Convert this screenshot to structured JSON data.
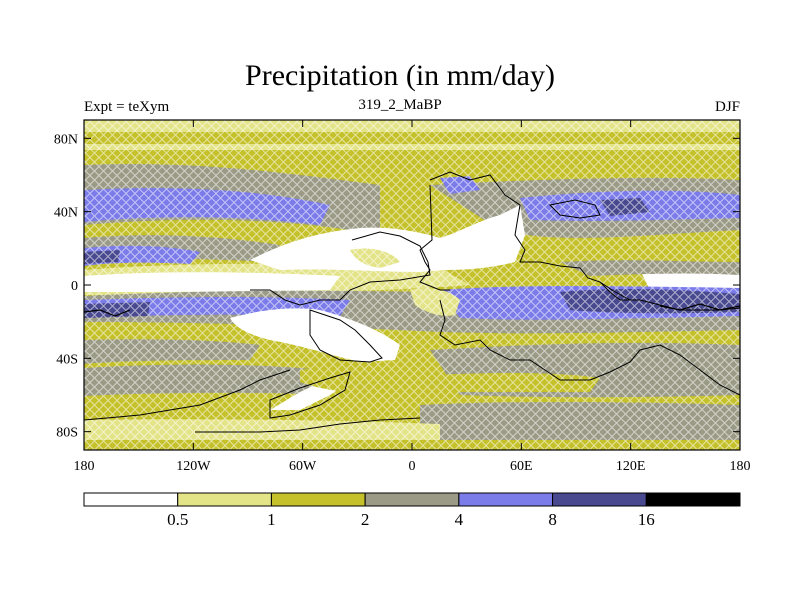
{
  "title": "Precipitation (in mm/day)",
  "left_subtitle": "Expt = teXym",
  "center_subtitle": "319_2_MaBP",
  "right_subtitle": "DJF",
  "lat_ticks": [
    {
      "label": "80N",
      "lat": 80
    },
    {
      "label": "40N",
      "lat": 40
    },
    {
      "label": "0",
      "lat": 0
    },
    {
      "label": "40S",
      "lat": -40
    },
    {
      "label": "80S",
      "lat": -80
    }
  ],
  "lon_ticks": [
    {
      "label": "180",
      "lon": -180
    },
    {
      "label": "120W",
      "lon": -120
    },
    {
      "label": "60W",
      "lon": -60
    },
    {
      "label": "0",
      "lon": 0
    },
    {
      "label": "60E",
      "lon": 60
    },
    {
      "label": "120E",
      "lon": 120
    },
    {
      "label": "180",
      "lon": 180
    }
  ],
  "colorbar": {
    "colors": [
      "#ffffff",
      "#e3e388",
      "#c4c12a",
      "#9a9a86",
      "#7b7bea",
      "#494990",
      "#000000"
    ],
    "labels": [
      "0.5",
      "1",
      "2",
      "4",
      "8",
      "16"
    ]
  }
}
